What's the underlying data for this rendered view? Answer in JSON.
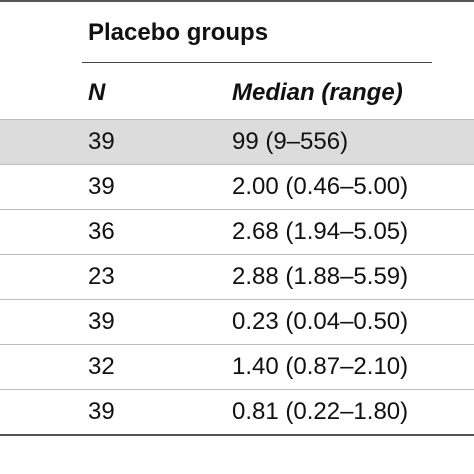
{
  "table": {
    "group_title": "Placebo groups",
    "headers": {
      "n": "N",
      "median": "Median (range)"
    },
    "rows": [
      {
        "n": "39",
        "median": "99 (9–556)"
      },
      {
        "n": "39",
        "median": "2.00 (0.46–5.00)"
      },
      {
        "n": "36",
        "median": "2.68 (1.94–5.05)"
      },
      {
        "n": "23",
        "median": "2.88 (1.88–5.59)"
      },
      {
        "n": "39",
        "median": "0.23 (0.04–0.50)"
      },
      {
        "n": "32",
        "median": "1.40 (0.87–2.10)"
      },
      {
        "n": "39",
        "median": "0.81 (0.22–1.80)"
      }
    ]
  },
  "colors": {
    "row_shade": "#dcdcdc",
    "rule": "#555555"
  }
}
